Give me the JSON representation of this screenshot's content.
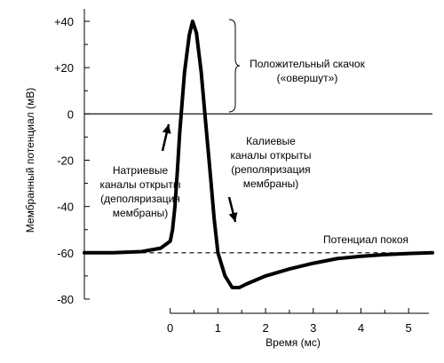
{
  "chart_data": {
    "type": "line",
    "title": "",
    "xlabel": "Время (мс)",
    "ylabel": "Мембранный потенциал (мВ)",
    "xlim": [
      -1.8,
      5.5
    ],
    "ylim": [
      -80,
      40
    ],
    "x_ticks": [
      0,
      1,
      2,
      3,
      4,
      5
    ],
    "x_tick_labels": [
      "0",
      "1",
      "2",
      "3",
      "4",
      "5"
    ],
    "y_ticks": [
      40,
      20,
      0,
      -20,
      -40,
      -60,
      -80
    ],
    "y_tick_labels": [
      "+40",
      "+20",
      "0",
      "-20",
      "-40",
      "-60",
      "-80"
    ],
    "grid": false,
    "series": [
      {
        "x": [
          -1.8,
          -1.2,
          -0.6,
          -0.2,
          0.0,
          0.05,
          0.1,
          0.15,
          0.2,
          0.3,
          0.4,
          0.47,
          0.55,
          0.65,
          0.75,
          0.85,
          0.92,
          1.0,
          1.15,
          1.3,
          1.45,
          1.6,
          2.0,
          2.5,
          3.0,
          3.5,
          4.0,
          4.5,
          5.0,
          5.5
        ],
        "y": [
          -60,
          -60,
          -59.5,
          -58,
          -55,
          -50,
          -40,
          -25,
          -8,
          18,
          34,
          40,
          35,
          18,
          -5,
          -28,
          -45,
          -60,
          -70,
          -75,
          -75,
          -73.5,
          -70,
          -67,
          -64.5,
          -62.5,
          -61.5,
          -60.8,
          -60.3,
          -60
        ]
      }
    ],
    "reference_lines": [
      {
        "axis": "y",
        "value": 0,
        "style": "solid"
      },
      {
        "axis": "y",
        "value": -60,
        "style": "dashed",
        "from_x": -0.6,
        "to_x": 5.5
      }
    ],
    "annotations": {
      "overshoot": [
        "Положительный скачок",
        "(«овершут»)"
      ],
      "sodium": [
        "Натриевые",
        "каналы открыты",
        "(деполяризация",
        "мембраны)"
      ],
      "potassium": [
        "Калиевые",
        "каналы открыты",
        "(реполяризация",
        "мембраны)"
      ],
      "rest": [
        "Потенциал покоя"
      ]
    }
  }
}
